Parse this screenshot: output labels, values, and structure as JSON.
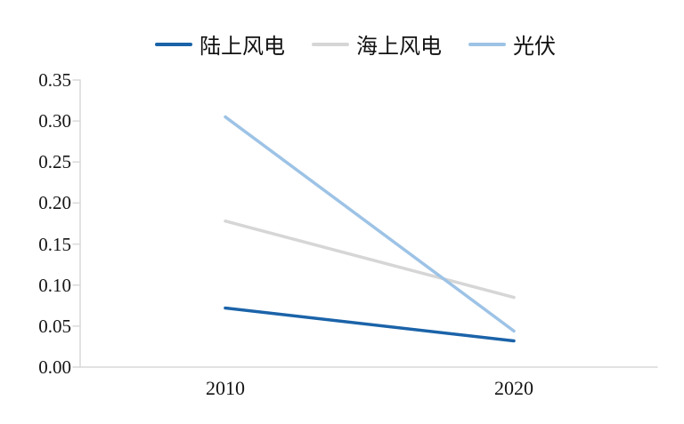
{
  "chart_data": {
    "type": "line",
    "categories": [
      "2010",
      "2020"
    ],
    "series": [
      {
        "name": "陆上风电",
        "values": [
          0.072,
          0.032
        ],
        "color": "#1B63A9"
      },
      {
        "name": "海上风电",
        "values": [
          0.178,
          0.085
        ],
        "color": "#D6D6D6"
      },
      {
        "name": "光伏",
        "values": [
          0.305,
          0.044
        ],
        "color": "#9DC3E6"
      }
    ],
    "title": "",
    "xlabel": "",
    "ylabel": "",
    "ylim": [
      0,
      0.35
    ],
    "ytick_step": 0.05,
    "yticks": [
      "0.00",
      "0.05",
      "0.10",
      "0.15",
      "0.20",
      "0.25",
      "0.30",
      "0.35"
    ],
    "xticks": [
      "2010",
      "2020"
    ],
    "grid": false,
    "legend_position": "top",
    "axis_color": "#D9D9D9"
  }
}
